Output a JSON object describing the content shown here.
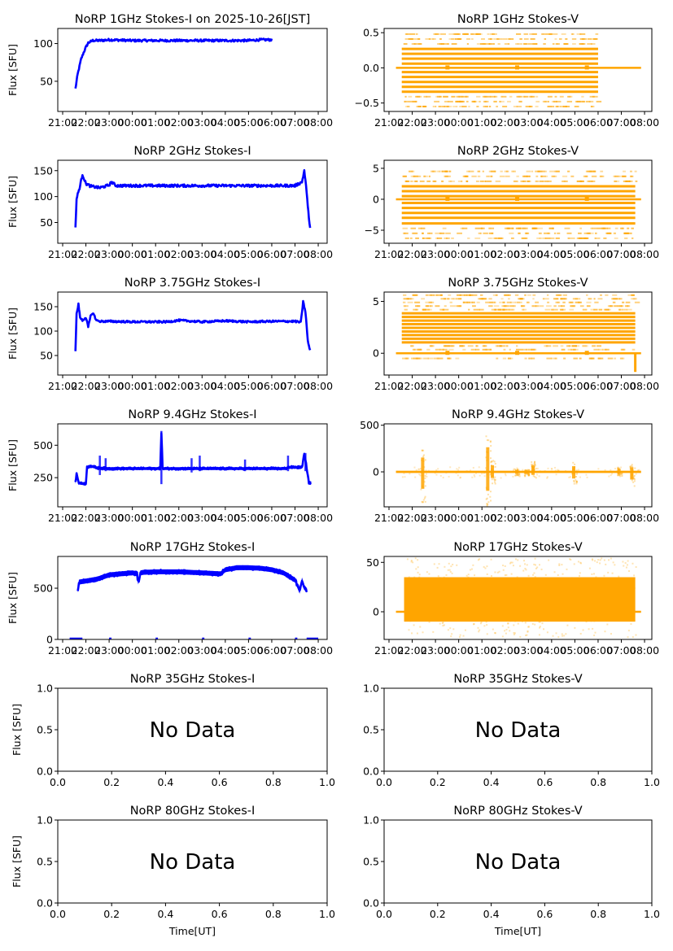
{
  "figure": {
    "xlabel_bottom": "Time[UT]",
    "ylabel": "Flux [SFU]",
    "no_data_text": "No Data",
    "colors": {
      "stokes_i": "#0000ff",
      "stokes_v": "#ffa500",
      "axes": "#000000"
    },
    "time_ticks": [
      "21:00",
      "22:00",
      "23:00",
      "00:00",
      "01:00",
      "02:00",
      "03:00",
      "04:00",
      "05:00",
      "06:00",
      "07:00",
      "08:00"
    ],
    "time_range_hours_from_2100": [
      -0.22,
      11.35
    ]
  },
  "chart_data": [
    {
      "id": "1ghz-i",
      "type": "line",
      "title": "NoRP 1GHz Stokes-I on 2025-10-26[JST]",
      "ylabel": "Flux [SFU]",
      "ylim": [
        10,
        120
      ],
      "yticks": [
        50,
        100
      ],
      "color": "#0000ff",
      "series": [
        {
          "name": "Stokes-I",
          "x_hours": [
            0.55,
            0.65,
            0.8,
            0.9,
            1.0,
            1.1,
            1.3,
            1.6,
            2.0,
            3.0,
            4.0,
            5.0,
            6.0,
            7.0,
            8.0,
            8.5,
            9.0
          ],
          "y": [
            40,
            60,
            80,
            88,
            95,
            101,
            104,
            104,
            105,
            104,
            104,
            104,
            104,
            104,
            104,
            105,
            105
          ],
          "spread": 3
        }
      ]
    },
    {
      "id": "1ghz-v",
      "type": "scatter",
      "title": "NoRP 1GHz Stokes-V",
      "ylim": [
        -0.62,
        0.56
      ],
      "yticks": [
        -0.5,
        0.0,
        0.5
      ],
      "ytick_labels": [
        "−0.5",
        "0.0",
        "0.5"
      ],
      "color": "#ffa500",
      "data_span_hours": [
        0.55,
        9.0
      ],
      "zero_line_hours": [
        0.3,
        10.85
      ],
      "levels": [
        -0.55,
        -0.48,
        -0.41,
        -0.34,
        -0.27,
        -0.2,
        -0.13,
        -0.06,
        0.06,
        0.13,
        0.2,
        0.27,
        0.34,
        0.41,
        0.48
      ],
      "dense_levels": [
        -0.34,
        -0.27,
        -0.2,
        -0.13,
        -0.06,
        0.06,
        0.13,
        0.2,
        0.27
      ],
      "step_marks_hours": [
        2.5,
        5.5,
        8.5
      ]
    },
    {
      "id": "2ghz-i",
      "type": "line",
      "title": "NoRP 2GHz Stokes-I",
      "ylabel": "Flux [SFU]",
      "ylim": [
        10,
        170
      ],
      "yticks": [
        50,
        100,
        150
      ],
      "color": "#0000ff",
      "series": [
        {
          "name": "Stokes-I",
          "x_hours": [
            0.55,
            0.6,
            0.65,
            0.75,
            0.85,
            1.0,
            1.2,
            1.6,
            2.0,
            2.1,
            2.3,
            3.0,
            5.0,
            7.0,
            9.0,
            10.0,
            10.3,
            10.4,
            10.5,
            10.55,
            10.65
          ],
          "y": [
            40,
            95,
            105,
            120,
            143,
            125,
            120,
            117,
            122,
            128,
            121,
            121,
            121,
            121,
            121,
            121,
            128,
            150,
            110,
            80,
            40
          ],
          "spread": 5
        }
      ]
    },
    {
      "id": "2ghz-v",
      "type": "scatter",
      "title": "NoRP 2GHz Stokes-V",
      "ylim": [
        -7.1,
        6.3
      ],
      "yticks": [
        -5,
        0,
        5
      ],
      "ytick_labels": [
        "−5",
        "0",
        "5"
      ],
      "color": "#ffa500",
      "data_span_hours": [
        0.55,
        10.6
      ],
      "zero_line_hours": [
        0.3,
        10.85
      ],
      "levels": [
        -6.3,
        -5.5,
        -4.7,
        -3.9,
        -3.0,
        -2.2,
        -1.4,
        -0.6,
        0.5,
        1.3,
        2.1,
        2.9,
        3.7,
        4.5
      ],
      "dense_levels": [
        -3.9,
        -3.0,
        -2.2,
        -1.4,
        -0.6,
        0.5,
        1.3,
        2.1
      ],
      "step_marks_hours": [
        2.5,
        5.5,
        8.5
      ]
    },
    {
      "id": "3.75ghz-i",
      "type": "line",
      "title": "NoRP 3.75GHz Stokes-I",
      "ylabel": "Flux [SFU]",
      "ylim": [
        10,
        180
      ],
      "yticks": [
        50,
        100,
        150
      ],
      "color": "#0000ff",
      "series": [
        {
          "name": "Stokes-I",
          "x_hours": [
            0.55,
            0.6,
            0.68,
            0.75,
            0.85,
            1.0,
            1.1,
            1.2,
            1.3,
            1.45,
            1.6,
            2.0,
            3.0,
            4.5,
            5.0,
            6.0,
            7.0,
            8.0,
            9.0,
            10.0,
            10.25,
            10.35,
            10.45,
            10.55,
            10.65
          ],
          "y": [
            60,
            135,
            155,
            128,
            122,
            128,
            108,
            130,
            138,
            122,
            120,
            120,
            119,
            119,
            122,
            119,
            121,
            119,
            120,
            120,
            118,
            160,
            140,
            80,
            60
          ],
          "spread": 4
        }
      ]
    },
    {
      "id": "3.75ghz-v",
      "type": "scatter",
      "title": "NoRP 3.75GHz Stokes-V",
      "ylim": [
        -2.1,
        5.9
      ],
      "yticks": [
        0,
        5
      ],
      "ytick_labels": [
        "0",
        "5"
      ],
      "color": "#ffa500",
      "data_span_hours": [
        0.55,
        10.6
      ],
      "zero_line_hours": [
        0.3,
        10.85
      ],
      "levels": [
        -0.5,
        0,
        0.35,
        0.7,
        1.05,
        1.4,
        1.75,
        2.1,
        2.45,
        2.8,
        3.15,
        3.5,
        3.85,
        4.2,
        4.55,
        4.9,
        5.25,
        5.6
      ],
      "dense_levels": [
        1.05,
        1.4,
        1.75,
        2.1,
        2.45,
        2.8,
        3.15,
        3.5,
        3.85
      ],
      "step_marks_hours": [
        2.5,
        5.5,
        8.5
      ],
      "tail_drop": {
        "hour": 10.6,
        "min": -1.8
      }
    },
    {
      "id": "9.4ghz-i",
      "type": "line",
      "title": "NoRP 9.4GHz Stokes-I",
      "ylabel": "Flux [SFU]",
      "ylim": [
        25,
        665
      ],
      "yticks": [
        250,
        500
      ],
      "color": "#0000ff",
      "series": [
        {
          "name": "Stokes-I",
          "x_hours": [
            0.55,
            0.6,
            0.7,
            0.8,
            1.0,
            1.05,
            1.2,
            1.5,
            2.0,
            3.0,
            4.0,
            4.2,
            4.25,
            4.3,
            4.4,
            5.0,
            6.0,
            7.0,
            8.0,
            9.0,
            9.6,
            9.7,
            10.0,
            10.3,
            10.4,
            10.5,
            10.6,
            10.7
          ],
          "y": [
            210,
            280,
            210,
            205,
            205,
            330,
            340,
            325,
            320,
            320,
            320,
            320,
            600,
            320,
            320,
            320,
            320,
            320,
            320,
            320,
            320,
            330,
            330,
            330,
            430,
            330,
            210,
            210
          ],
          "spread": 18,
          "spikes": [
            {
              "h": 4.25,
              "top": 610,
              "bottom": 200
            },
            {
              "h": 1.6,
              "top": 420,
              "bottom": 270
            },
            {
              "h": 1.85,
              "top": 400,
              "bottom": 300
            },
            {
              "h": 5.55,
              "top": 400,
              "bottom": 290
            },
            {
              "h": 5.9,
              "top": 420,
              "bottom": 300
            },
            {
              "h": 7.85,
              "top": 390,
              "bottom": 300
            },
            {
              "h": 9.7,
              "top": 420,
              "bottom": 300
            },
            {
              "h": 10.45,
              "top": 440,
              "bottom": 300
            }
          ]
        }
      ]
    },
    {
      "id": "9.4ghz-v",
      "type": "scatter",
      "title": "NoRP 9.4GHz Stokes-V",
      "ylim": [
        -375,
        515
      ],
      "yticks": [
        0,
        500
      ],
      "ytick_labels": [
        "0",
        "500"
      ],
      "color": "#ffa500",
      "data_span_hours": [
        0.3,
        10.85
      ],
      "baseline_band": 12,
      "bursts": [
        {
          "h": 1.45,
          "top": 280,
          "bottom": -330
        },
        {
          "h": 4.25,
          "top": 480,
          "bottom": -370
        },
        {
          "h": 4.45,
          "top": 130,
          "bottom": -120
        },
        {
          "h": 5.5,
          "top": 40,
          "bottom": -40
        },
        {
          "h": 5.9,
          "top": 40,
          "bottom": -40
        },
        {
          "h": 6.2,
          "top": 130,
          "bottom": -60
        },
        {
          "h": 7.95,
          "top": 110,
          "bottom": -130
        },
        {
          "h": 9.9,
          "top": 60,
          "bottom": -40
        },
        {
          "h": 10.45,
          "top": 90,
          "bottom": -150
        }
      ]
    },
    {
      "id": "17ghz-i",
      "type": "line",
      "title": "NoRP 17GHz Stokes-I",
      "ylabel": "Flux [SFU]",
      "ylim": [
        0,
        810
      ],
      "yticks": [
        0,
        500
      ],
      "color": "#0000ff",
      "series": [
        {
          "name": "Stokes-I",
          "x_hours": [
            0.65,
            0.7,
            1.0,
            1.5,
            2.0,
            3.0,
            3.2,
            3.25,
            3.35,
            3.5,
            4.0,
            5.0,
            6.0,
            6.8,
            7.0,
            7.5,
            8.0,
            8.5,
            9.0,
            9.5,
            10.0,
            10.2,
            10.3,
            10.4,
            10.5
          ],
          "y": [
            480,
            560,
            570,
            590,
            630,
            650,
            640,
            560,
            650,
            655,
            660,
            660,
            650,
            640,
            680,
            700,
            700,
            695,
            680,
            650,
            580,
            470,
            580,
            510,
            480
          ],
          "spread": 40
        }
      ],
      "zero_markers_hours": [
        [
          0.3,
          0.85
        ],
        [
          2.0,
          2.1
        ],
        [
          4.0,
          4.1
        ],
        [
          6.0,
          6.1
        ],
        [
          8.0,
          8.1
        ],
        [
          10.0,
          10.1
        ],
        [
          10.5,
          11.0
        ]
      ]
    },
    {
      "id": "17ghz-v",
      "type": "scatter",
      "title": "NoRP 17GHz Stokes-V",
      "ylim": [
        -28,
        56
      ],
      "yticks": [
        0,
        50
      ],
      "ytick_labels": [
        "0",
        "50"
      ],
      "color": "#ffa500",
      "data_span_hours": [
        0.65,
        10.6
      ],
      "zero_line_hours": [
        0.3,
        10.85
      ],
      "dense_range": [
        -10,
        35
      ],
      "sparse_range": [
        -25,
        55
      ]
    },
    {
      "id": "35ghz-i",
      "type": "empty",
      "title": "NoRP 35GHz Stokes-I",
      "ylabel": "Flux [SFU]",
      "xlim": [
        0,
        1
      ],
      "ylim": [
        0,
        1
      ],
      "xticks": [
        "0.0",
        "0.2",
        "0.4",
        "0.6",
        "0.8",
        "1.0"
      ],
      "yticks": [
        "0.0",
        "0.5",
        "1.0"
      ],
      "annotation": "No Data"
    },
    {
      "id": "35ghz-v",
      "type": "empty",
      "title": "NoRP 35GHz Stokes-V",
      "xlim": [
        0,
        1
      ],
      "ylim": [
        0,
        1
      ],
      "xticks": [
        "0.0",
        "0.2",
        "0.4",
        "0.6",
        "0.8",
        "1.0"
      ],
      "yticks": [
        "0.0",
        "0.5",
        "1.0"
      ],
      "annotation": "No Data"
    },
    {
      "id": "80ghz-i",
      "type": "empty",
      "title": "NoRP 80GHz Stokes-I",
      "ylabel": "Flux [SFU]",
      "xlabel": "Time[UT]",
      "xlim": [
        0,
        1
      ],
      "ylim": [
        0,
        1
      ],
      "xticks": [
        "0.0",
        "0.2",
        "0.4",
        "0.6",
        "0.8",
        "1.0"
      ],
      "yticks": [
        "0.0",
        "0.5",
        "1.0"
      ],
      "annotation": "No Data"
    },
    {
      "id": "80ghz-v",
      "type": "empty",
      "title": "NoRP 80GHz Stokes-V",
      "xlabel": "Time[UT]",
      "xlim": [
        0,
        1
      ],
      "ylim": [
        0,
        1
      ],
      "xticks": [
        "0.0",
        "0.2",
        "0.4",
        "0.6",
        "0.8",
        "1.0"
      ],
      "yticks": [
        "0.0",
        "0.5",
        "1.0"
      ],
      "annotation": "No Data"
    }
  ]
}
